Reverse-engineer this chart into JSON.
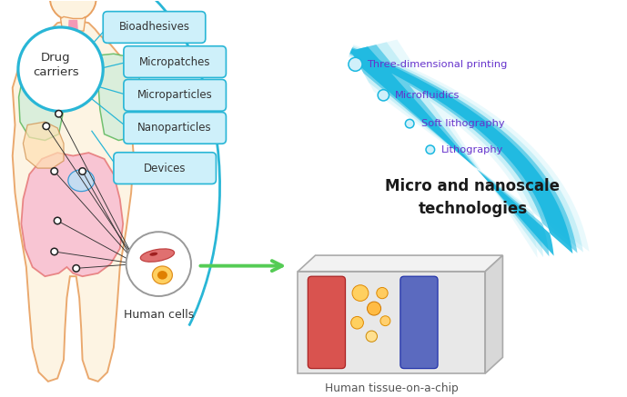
{
  "fig_width": 6.89,
  "fig_height": 4.37,
  "dpi": 100,
  "bg_color": "#ffffff",
  "body_color": "#fdf3e0",
  "body_edge": "#e8a060",
  "lung_color": "#d4edda",
  "lung_edge": "#5cb85c",
  "pink_organ": "#f48fb1",
  "intestine_color": "#f8bbd0",
  "intestine_edge": "#e57373",
  "liver_color": "#ffe0b2",
  "bladder_color": "#b3e5fc",
  "drug_circle_fc": "#ffffff",
  "drug_circle_ec": "#29b6d6",
  "label_box_fc": "#cef0fa",
  "label_box_ec": "#29b6d6",
  "tech_color": "#6633cc",
  "arrow_blue": "#1ab8e0",
  "arrow_blue_light": "#8adff0",
  "title_text": "Micro and nanoscale\ntechnologies",
  "title_color": "#1a1a1a",
  "human_cells_text": "Human cells",
  "chip_text": "Human tissue-on-a-chip",
  "chip_text_color": "#555555",
  "green_arrow": "#55cc55",
  "chip_base_fc": "#e8e8e8",
  "chip_base_ec": "#bbbbbb",
  "red_channel": "#d9534f",
  "blue_channel": "#5b6abf"
}
